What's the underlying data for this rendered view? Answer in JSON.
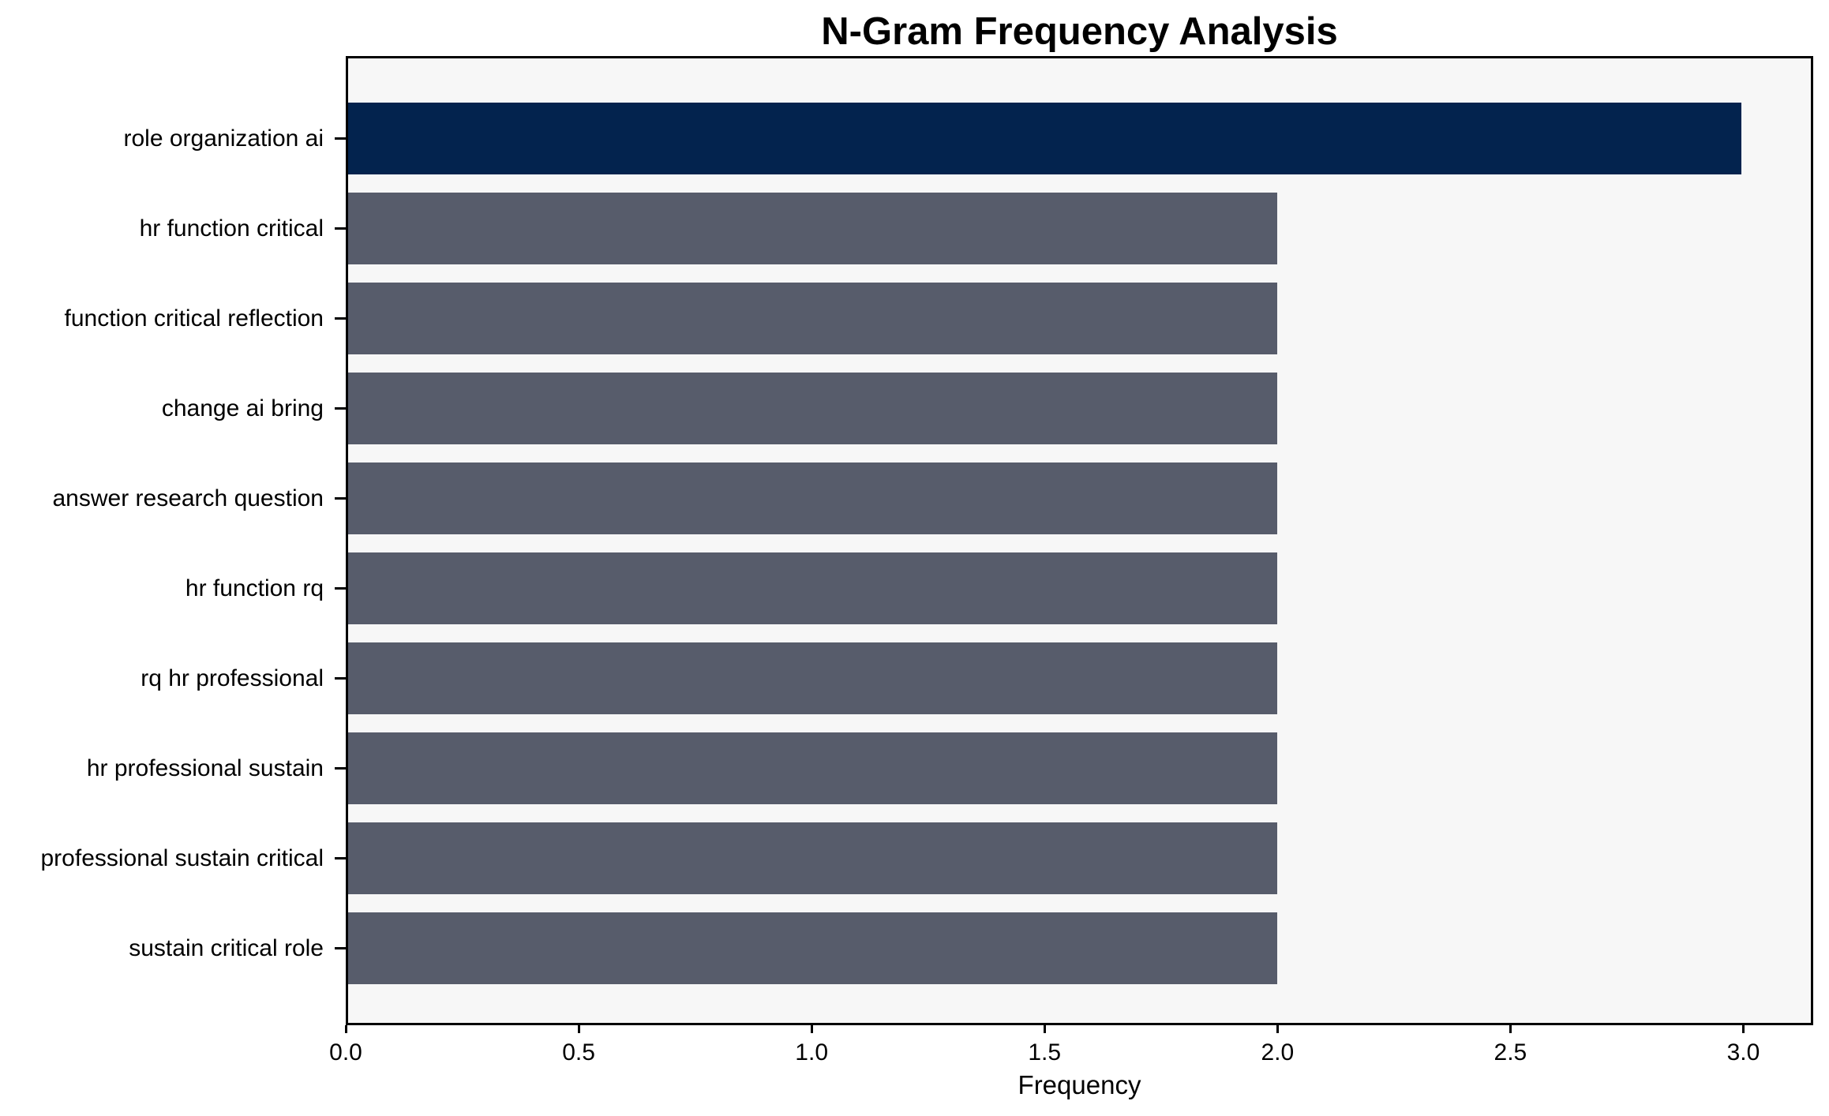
{
  "chart_data": {
    "type": "bar",
    "orientation": "horizontal",
    "title": "N-Gram Frequency Analysis",
    "xlabel": "Frequency",
    "ylabel": "",
    "categories": [
      "role organization ai",
      "hr function critical",
      "function critical reflection",
      "change ai bring",
      "answer research question",
      "hr function rq",
      "rq hr professional",
      "hr professional sustain",
      "professional sustain critical",
      "sustain critical role"
    ],
    "values": [
      3,
      2,
      2,
      2,
      2,
      2,
      2,
      2,
      2,
      2
    ],
    "xlim": [
      0,
      3.15
    ],
    "xticks": [
      0.0,
      0.5,
      1.0,
      1.5,
      2.0,
      2.5,
      3.0
    ],
    "xtick_labels": [
      "0.0",
      "0.5",
      "1.0",
      "1.5",
      "2.0",
      "2.5",
      "3.0"
    ],
    "grid": false,
    "legend": null,
    "bar_colors": [
      "#03234e",
      "#575c6b",
      "#575c6b",
      "#575c6b",
      "#575c6b",
      "#575c6b",
      "#575c6b",
      "#575c6b",
      "#575c6b",
      "#575c6b"
    ],
    "colors": {
      "highlight_bar": "#03234e",
      "default_bar": "#575c6b",
      "plot_background": "#f7f7f7",
      "figure_background": "#ffffff",
      "frame": "#000000",
      "text": "#000000"
    }
  }
}
